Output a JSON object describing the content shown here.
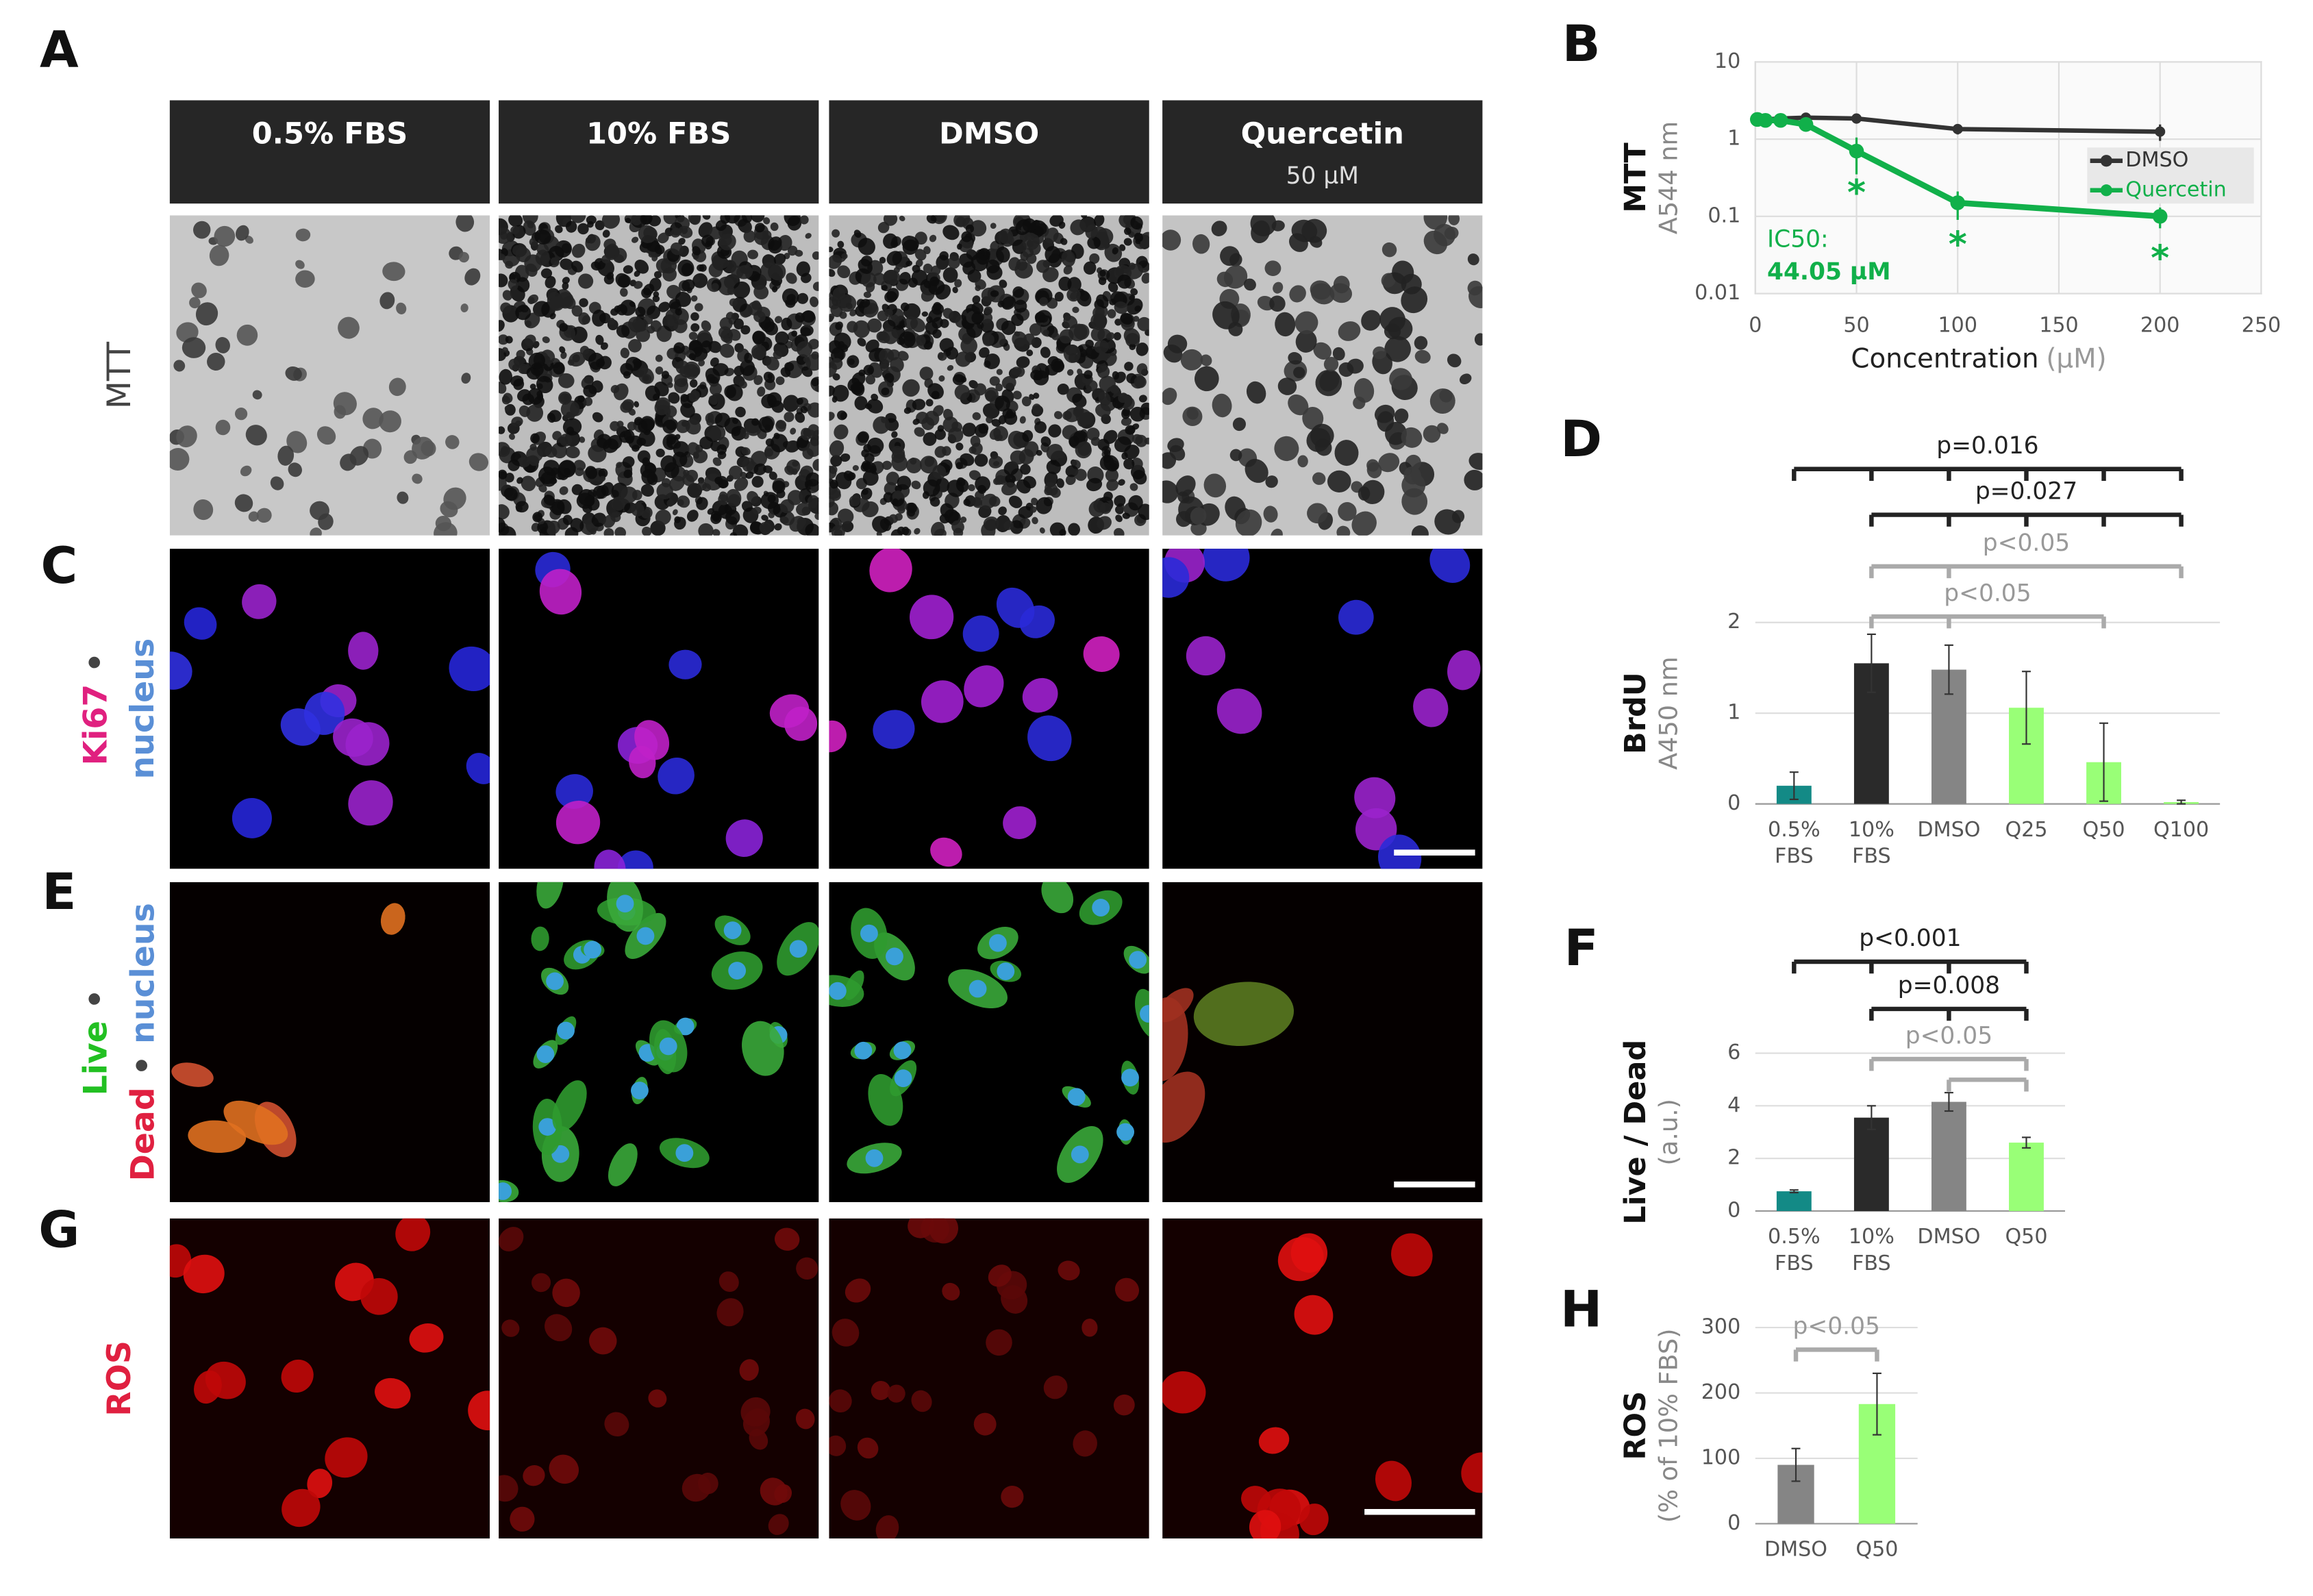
{
  "panel_labels": [
    "A",
    "B",
    "C",
    "D",
    "E",
    "F",
    "G",
    "H"
  ],
  "micrographs": {
    "columns": [
      {
        "title": "0.5% FBS"
      },
      {
        "title": "10% FBS"
      },
      {
        "title": "DMSO"
      },
      {
        "title": "Quercetin",
        "subtitle": "50 µM"
      }
    ],
    "rows": [
      {
        "label_lines": [
          [
            {
              "text": "MTT",
              "color": "#444444"
            }
          ]
        ]
      },
      {
        "label_lines": [
          [
            {
              "text": "Ki67",
              "color": "#e0207f"
            },
            {
              "text": " •",
              "color": "#444444"
            }
          ],
          [
            {
              "text": "nucleus",
              "color": "#5a8fd6"
            }
          ]
        ]
      },
      {
        "label_lines": [
          [
            {
              "text": "Live",
              "color": "#22c022"
            },
            {
              "text": " •",
              "color": "#444444"
            }
          ],
          [
            {
              "text": "Dead",
              "color": "#e02040"
            },
            {
              "text": " • ",
              "color": "#444444"
            },
            {
              "text": "nucleus",
              "color": "#5a8fd6"
            }
          ]
        ]
      },
      {
        "label_lines": [
          [
            {
              "text": "ROS",
              "color": "#e02040"
            }
          ]
        ]
      }
    ]
  },
  "chart_data": [
    {
      "type": "line",
      "ylabel": "MTT",
      "ylabel_unit": "A544 nm",
      "xlabel": "Concentration",
      "xlabel_unit": "(µM)",
      "log_y": true,
      "grid": true,
      "legend": "upper right",
      "xlim": [
        0,
        250
      ],
      "xticks": [
        0,
        50,
        100,
        150,
        200,
        250
      ],
      "ylim": [
        0.01,
        10
      ],
      "yticks": [
        0.01,
        0.1,
        1,
        10
      ],
      "series": [
        {
          "name": "DMSO",
          "color": "#333333",
          "x": [
            1,
            5,
            12.5,
            25,
            50,
            100,
            200
          ],
          "values": [
            1.8,
            1.8,
            1.85,
            1.9,
            1.85,
            1.35,
            1.25
          ],
          "errors": [
            0.3,
            0.2,
            0.15,
            0.15,
            0.2,
            0.2,
            0.3
          ]
        },
        {
          "name": "Quercetin",
          "color": "#11b04a",
          "x": [
            1,
            5,
            12.5,
            25,
            50,
            100,
            200
          ],
          "values": [
            1.8,
            1.75,
            1.75,
            1.55,
            0.7,
            0.15,
            0.1
          ],
          "errors": [
            0.35,
            0.3,
            0.2,
            0.25,
            0.35,
            0.06,
            0.03
          ]
        }
      ],
      "annotations": [
        {
          "text": "IC50:"
        },
        {
          "text": "44.05 µM"
        }
      ],
      "markers": [
        {
          "text": "*",
          "x": 50
        },
        {
          "text": "*",
          "x": 100
        },
        {
          "text": "*",
          "x": 200
        }
      ]
    },
    {
      "type": "bar",
      "ylabel": "BrdU",
      "ylabel_unit": "A450 nm",
      "grid": true,
      "categories": [
        [
          "0.5%",
          "FBS"
        ],
        [
          "10%",
          "FBS"
        ],
        [
          "DMSO"
        ],
        [
          "Q25"
        ],
        [
          "Q50"
        ],
        [
          "Q100"
        ]
      ],
      "values": [
        0.2,
        1.55,
        1.48,
        1.06,
        0.46,
        0.02
      ],
      "errors": [
        0.15,
        0.32,
        0.27,
        0.4,
        0.43,
        0.02
      ],
      "colors": [
        "#138a86",
        "#2a2a2a",
        "#858585",
        "#99ff77",
        "#99ff77",
        "#99ff77"
      ],
      "ylim": [
        0,
        2
      ],
      "yticks": [
        0,
        1,
        2
      ],
      "brackets": [
        {
          "label": "p=0.016",
          "from": 0,
          "to": 5,
          "drops": [
            0,
            1,
            2,
            3,
            4,
            5
          ],
          "color": "#222222"
        },
        {
          "label": "p=0.027",
          "from": 1,
          "to": 5,
          "drops": [
            1,
            2,
            3,
            4,
            5
          ],
          "color": "#222222"
        },
        {
          "label": "p<0.05",
          "from": 1,
          "to": 5,
          "drops": [
            1,
            2,
            5
          ],
          "color": "#aaaaaa"
        },
        {
          "label": "p<0.05",
          "from": 1,
          "to": 4,
          "drops": [
            1,
            2,
            4
          ],
          "color": "#aaaaaa"
        }
      ]
    },
    {
      "type": "bar",
      "ylabel": "Live / Dead",
      "ylabel_unit": "(a.u.)",
      "grid": true,
      "categories": [
        [
          "0.5%",
          "FBS"
        ],
        [
          "10%",
          "FBS"
        ],
        [
          "DMSO"
        ],
        [
          "Q50"
        ]
      ],
      "values": [
        0.75,
        3.55,
        4.15,
        2.6
      ],
      "errors": [
        0.05,
        0.45,
        0.35,
        0.2
      ],
      "colors": [
        "#138a86",
        "#2a2a2a",
        "#858585",
        "#99ff77"
      ],
      "ylim": [
        0,
        6
      ],
      "yticks": [
        0,
        2,
        4,
        6
      ],
      "brackets": [
        {
          "label": "p<0.001",
          "from": 0,
          "to": 3,
          "drops": [
            0,
            1,
            2,
            3
          ],
          "color": "#222222"
        },
        {
          "label": "p=0.008",
          "from": 1,
          "to": 3,
          "drops": [
            1,
            2,
            3
          ],
          "color": "#222222"
        },
        {
          "label": "p<0.05",
          "from": 1,
          "to": 3,
          "drops": [
            1,
            3
          ],
          "color": "#aaaaaa"
        },
        {
          "from": 2,
          "to": 3,
          "drops": [
            2,
            3
          ],
          "color": "#aaaaaa"
        }
      ]
    },
    {
      "type": "bar",
      "ylabel": "ROS",
      "ylabel_unit": "(% of 10% FBS)",
      "grid": true,
      "categories": [
        [
          "DMSO"
        ],
        [
          "Q50"
        ]
      ],
      "values": [
        90,
        183
      ],
      "errors": [
        25,
        47
      ],
      "colors": [
        "#858585",
        "#99ff77"
      ],
      "ylim": [
        0,
        300
      ],
      "yticks": [
        0,
        100,
        200,
        300
      ],
      "brackets": [
        {
          "label": "p<0.05",
          "from": 0,
          "to": 1,
          "drops": [
            0,
            1
          ],
          "color": "#aaaaaa"
        }
      ]
    }
  ]
}
